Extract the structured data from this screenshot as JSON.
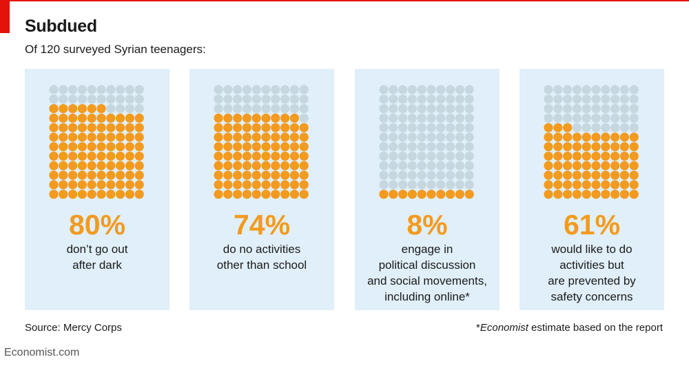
{
  "title": "Subdued",
  "subtitle": "Of 120 surveyed Syrian teenagers:",
  "chart_data": {
    "type": "waffle",
    "title": "Subdued",
    "subtitle": "Of 120 surveyed Syrian teenagers:",
    "dots_per_panel": 120,
    "colors": {
      "highlight": "#f39a1f",
      "rest": "#c7d7e0",
      "panel": "#e0eff9"
    },
    "panels": [
      {
        "percent": 80,
        "value": "80%",
        "label": [
          "don’t go out",
          "after dark"
        ]
      },
      {
        "percent": 74,
        "value": "74%",
        "label": [
          "do no activities",
          "other than school"
        ]
      },
      {
        "percent": 8,
        "value": "8%",
        "label": [
          "engage in",
          "political discussion",
          "and social movements,",
          "including online*"
        ]
      },
      {
        "percent": 61,
        "value": "61%",
        "label": [
          "would like to do",
          "activities but",
          "are prevented by",
          "safety concerns"
        ]
      }
    ]
  },
  "source": "Source: Mercy Corps",
  "note": {
    "em": "Economist",
    "rest": " estimate based on the report",
    "prefix": "*"
  },
  "brand": "Economist.com"
}
